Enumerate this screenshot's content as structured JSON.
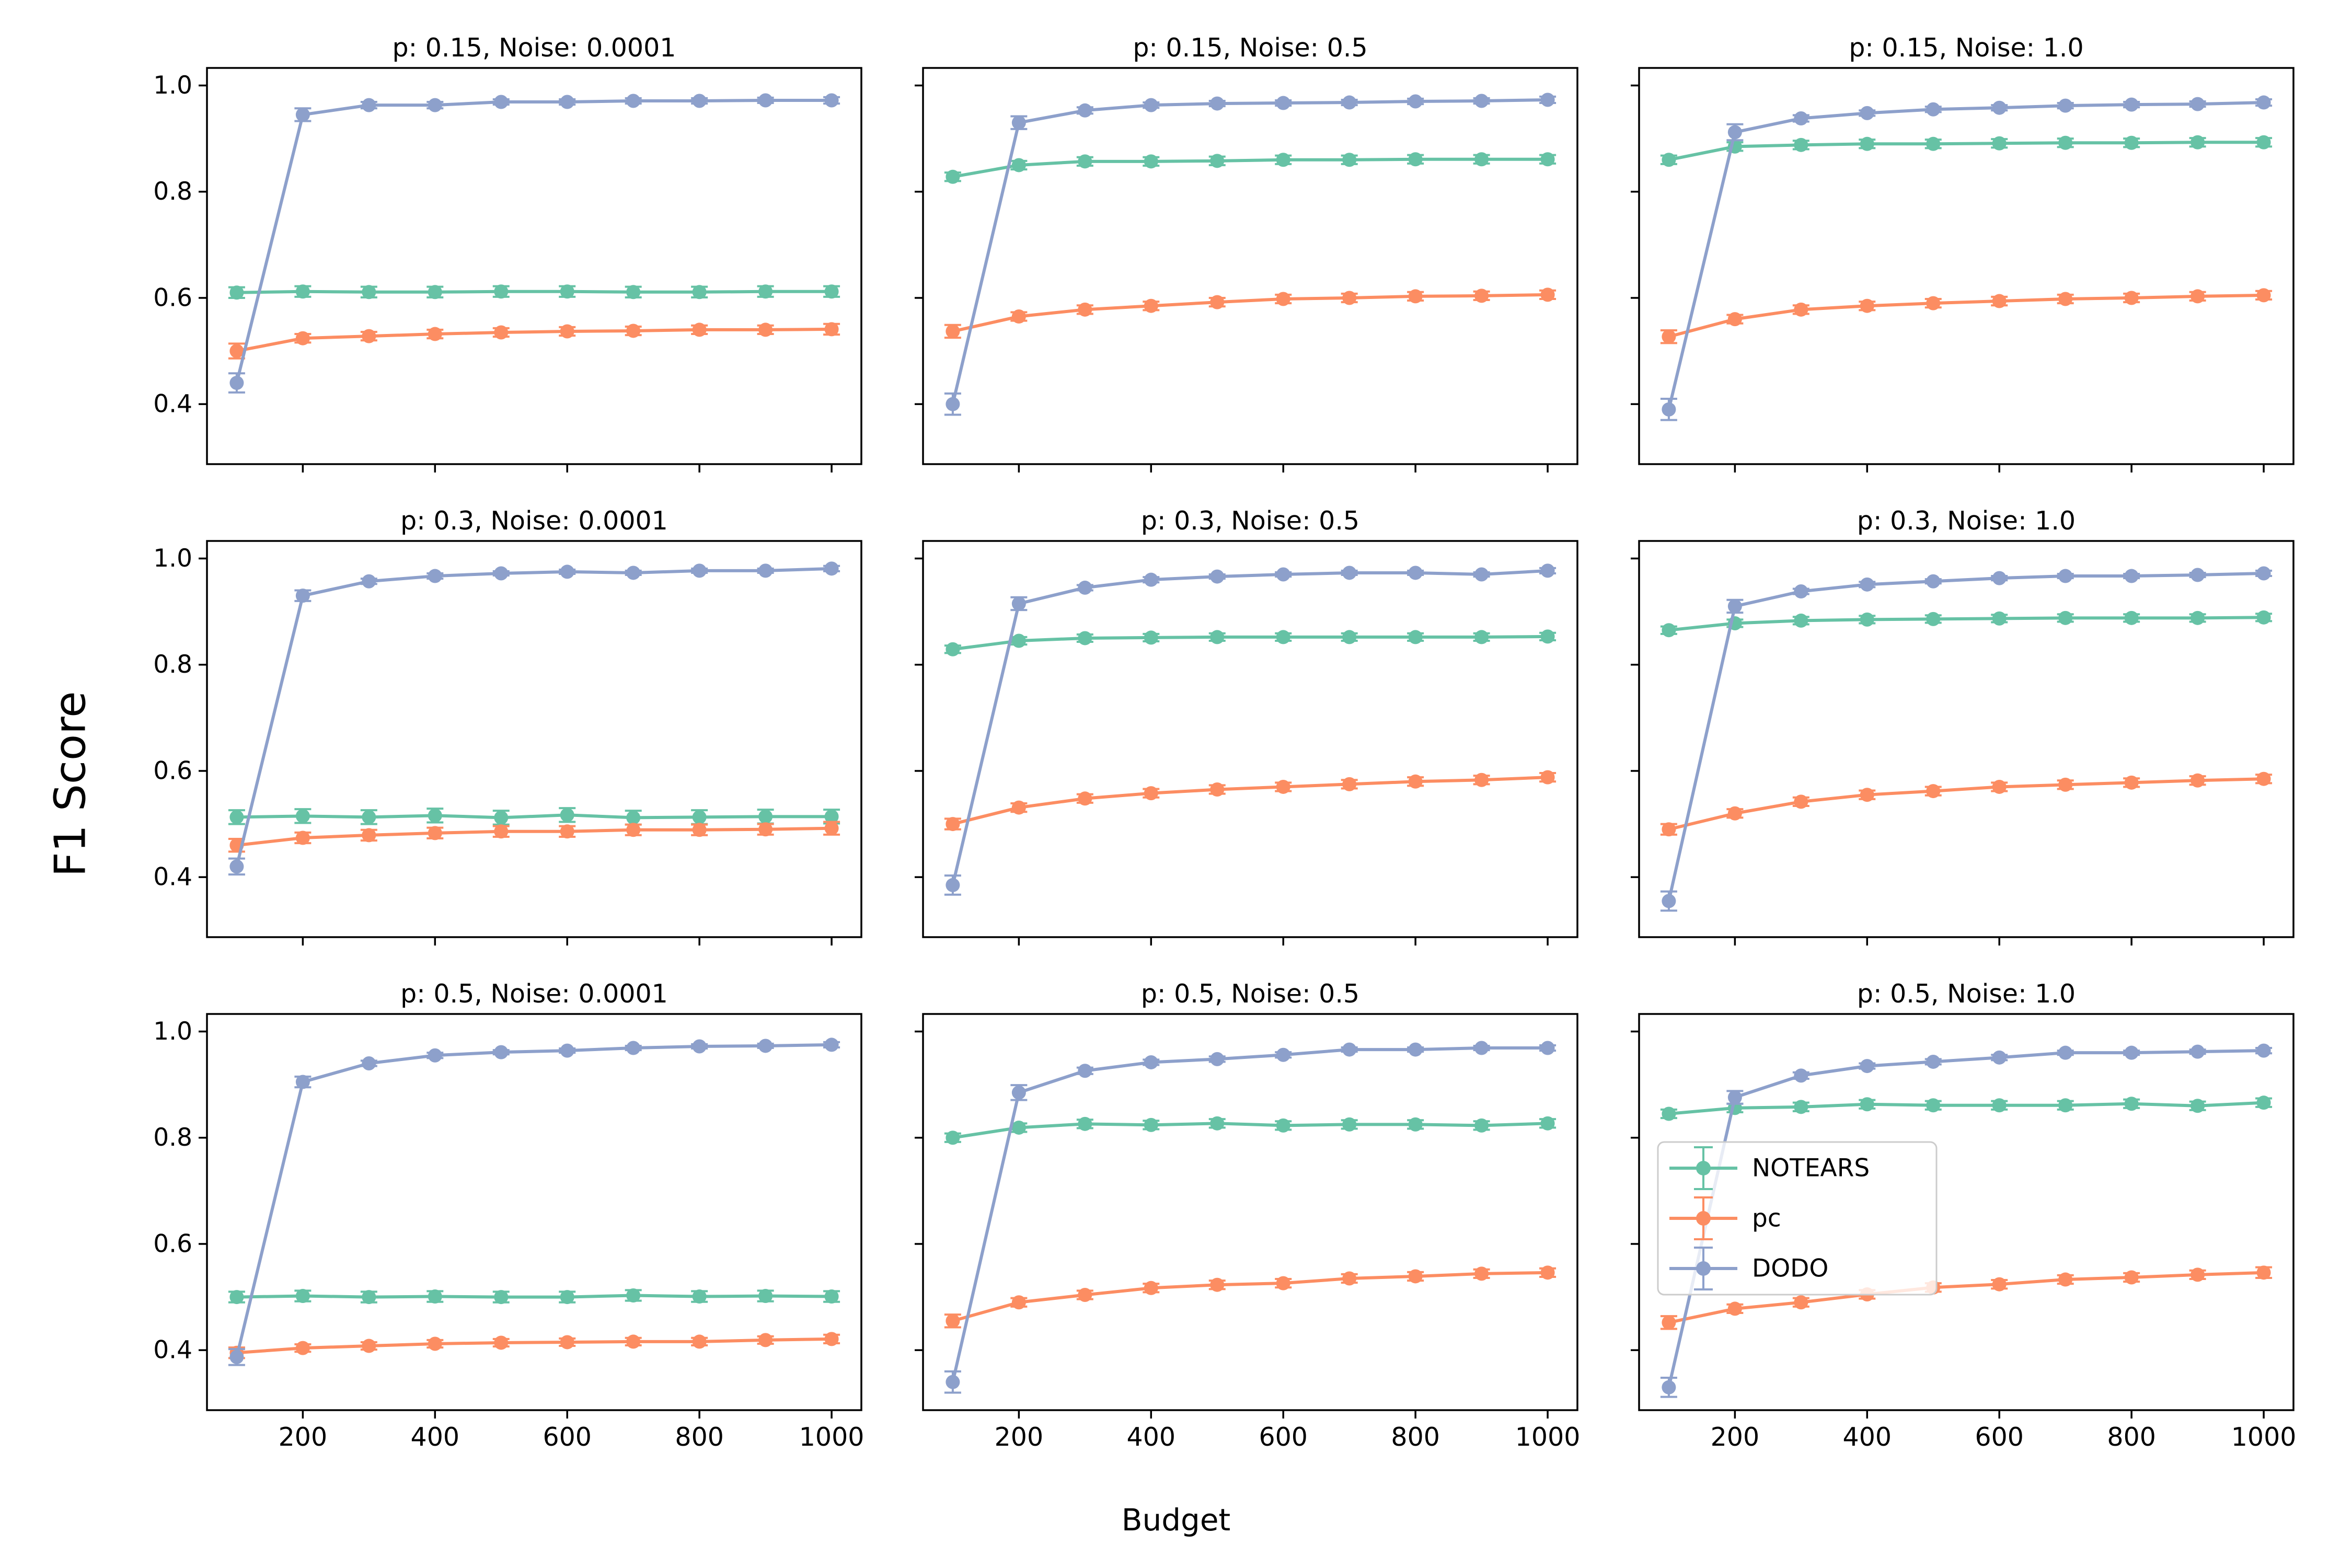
{
  "figure": {
    "background": "#ffffff",
    "supxlabel": "Budget",
    "supylabel": "F1 Score"
  },
  "style": {
    "series_colors": {
      "NOTEARS": "#66c2a5",
      "pc": "#fc8d62",
      "DODO": "#8da0cb"
    },
    "spine_color": "#000000",
    "legend_border_color": "#cccccc",
    "legend_background": "#ffffff"
  },
  "legend": {
    "entries": [
      {
        "label": "NOTEARS",
        "color": "#66c2a5"
      },
      {
        "label": "pc",
        "color": "#fc8d62"
      },
      {
        "label": "DODO",
        "color": "#8da0cb"
      }
    ],
    "location": "center-left-of-bottom-right-subplot"
  },
  "axes_config": {
    "x_ticks": [
      200,
      400,
      600,
      800,
      1000
    ],
    "y_ticks": [
      0.4,
      0.6,
      0.8,
      1.0
    ],
    "x_range": [
      55,
      1045
    ],
    "y_range": [
      0.287,
      1.033
    ],
    "grid": false
  },
  "chart_data": [
    {
      "type": "line",
      "title": "p: 0.15, Noise: 0.0001",
      "p": "0.15",
      "noise": "0.0001",
      "x": [
        100,
        200,
        300,
        400,
        500,
        600,
        700,
        800,
        900,
        1000
      ],
      "series": [
        {
          "name": "NOTEARS",
          "values": [
            0.61,
            0.612,
            0.611,
            0.611,
            0.612,
            0.612,
            0.611,
            0.611,
            0.612,
            0.612
          ],
          "errors": [
            0.01,
            0.01,
            0.01,
            0.01,
            0.01,
            0.01,
            0.01,
            0.01,
            0.01,
            0.01
          ]
        },
        {
          "name": "pc",
          "values": [
            0.5,
            0.524,
            0.528,
            0.532,
            0.535,
            0.537,
            0.538,
            0.54,
            0.54,
            0.541
          ],
          "errors": [
            0.014,
            0.008,
            0.008,
            0.008,
            0.008,
            0.008,
            0.008,
            0.008,
            0.008,
            0.01
          ]
        },
        {
          "name": "DODO",
          "values": [
            0.44,
            0.945,
            0.963,
            0.963,
            0.969,
            0.969,
            0.971,
            0.971,
            0.972,
            0.972
          ],
          "errors": [
            0.018,
            0.012,
            0.006,
            0.006,
            0.005,
            0.005,
            0.005,
            0.005,
            0.005,
            0.006
          ]
        }
      ]
    },
    {
      "type": "line",
      "title": "p: 0.15, Noise: 0.5",
      "p": "0.15",
      "noise": "0.5",
      "x": [
        100,
        200,
        300,
        400,
        500,
        600,
        700,
        800,
        900,
        1000
      ],
      "series": [
        {
          "name": "NOTEARS",
          "values": [
            0.828,
            0.85,
            0.857,
            0.857,
            0.858,
            0.86,
            0.86,
            0.861,
            0.861,
            0.861
          ],
          "errors": [
            0.008,
            0.008,
            0.008,
            0.008,
            0.008,
            0.008,
            0.008,
            0.008,
            0.008,
            0.008
          ]
        },
        {
          "name": "pc",
          "values": [
            0.537,
            0.565,
            0.578,
            0.585,
            0.592,
            0.598,
            0.6,
            0.603,
            0.604,
            0.606
          ],
          "errors": [
            0.012,
            0.008,
            0.008,
            0.008,
            0.008,
            0.008,
            0.008,
            0.008,
            0.008,
            0.008
          ]
        },
        {
          "name": "DODO",
          "values": [
            0.4,
            0.93,
            0.953,
            0.963,
            0.966,
            0.967,
            0.968,
            0.97,
            0.971,
            0.973
          ],
          "errors": [
            0.02,
            0.012,
            0.006,
            0.005,
            0.005,
            0.005,
            0.005,
            0.005,
            0.005,
            0.006
          ]
        }
      ]
    },
    {
      "type": "line",
      "title": "p: 0.15, Noise: 1.0",
      "p": "0.15",
      "noise": "1.0",
      "x": [
        100,
        200,
        300,
        400,
        500,
        600,
        700,
        800,
        900,
        1000
      ],
      "series": [
        {
          "name": "NOTEARS",
          "values": [
            0.86,
            0.885,
            0.888,
            0.89,
            0.89,
            0.891,
            0.892,
            0.892,
            0.893,
            0.893
          ],
          "errors": [
            0.008,
            0.008,
            0.008,
            0.008,
            0.008,
            0.008,
            0.008,
            0.008,
            0.008,
            0.008
          ]
        },
        {
          "name": "pc",
          "values": [
            0.527,
            0.56,
            0.578,
            0.585,
            0.59,
            0.594,
            0.598,
            0.6,
            0.603,
            0.605
          ],
          "errors": [
            0.012,
            0.008,
            0.008,
            0.008,
            0.008,
            0.008,
            0.008,
            0.008,
            0.008,
            0.008
          ]
        },
        {
          "name": "DODO",
          "values": [
            0.39,
            0.912,
            0.938,
            0.948,
            0.955,
            0.958,
            0.962,
            0.964,
            0.965,
            0.968
          ],
          "errors": [
            0.02,
            0.015,
            0.006,
            0.005,
            0.005,
            0.005,
            0.005,
            0.005,
            0.005,
            0.006
          ]
        }
      ]
    },
    {
      "type": "line",
      "title": "p: 0.3, Noise: 0.0001",
      "p": "0.3",
      "noise": "0.0001",
      "x": [
        100,
        200,
        300,
        400,
        500,
        600,
        700,
        800,
        900,
        1000
      ],
      "series": [
        {
          "name": "NOTEARS",
          "values": [
            0.513,
            0.515,
            0.513,
            0.516,
            0.512,
            0.517,
            0.512,
            0.513,
            0.514,
            0.514
          ],
          "errors": [
            0.013,
            0.013,
            0.013,
            0.013,
            0.013,
            0.013,
            0.013,
            0.013,
            0.013,
            0.013
          ]
        },
        {
          "name": "pc",
          "values": [
            0.46,
            0.474,
            0.479,
            0.483,
            0.486,
            0.486,
            0.489,
            0.489,
            0.49,
            0.492
          ],
          "errors": [
            0.012,
            0.01,
            0.01,
            0.01,
            0.01,
            0.01,
            0.01,
            0.01,
            0.01,
            0.012
          ]
        },
        {
          "name": "DODO",
          "values": [
            0.42,
            0.93,
            0.957,
            0.967,
            0.972,
            0.975,
            0.973,
            0.977,
            0.977,
            0.981
          ],
          "errors": [
            0.015,
            0.01,
            0.005,
            0.005,
            0.004,
            0.004,
            0.004,
            0.004,
            0.004,
            0.005
          ]
        }
      ]
    },
    {
      "type": "line",
      "title": "p: 0.3, Noise: 0.5",
      "p": "0.3",
      "noise": "0.5",
      "x": [
        100,
        200,
        300,
        400,
        500,
        600,
        700,
        800,
        900,
        1000
      ],
      "series": [
        {
          "name": "NOTEARS",
          "values": [
            0.829,
            0.845,
            0.85,
            0.851,
            0.852,
            0.852,
            0.852,
            0.852,
            0.852,
            0.853
          ],
          "errors": [
            0.007,
            0.007,
            0.007,
            0.007,
            0.007,
            0.007,
            0.007,
            0.007,
            0.007,
            0.007
          ]
        },
        {
          "name": "pc",
          "values": [
            0.5,
            0.531,
            0.548,
            0.558,
            0.565,
            0.57,
            0.575,
            0.58,
            0.583,
            0.588
          ],
          "errors": [
            0.01,
            0.008,
            0.008,
            0.008,
            0.008,
            0.008,
            0.008,
            0.008,
            0.008,
            0.008
          ]
        },
        {
          "name": "DODO",
          "values": [
            0.385,
            0.915,
            0.945,
            0.96,
            0.966,
            0.97,
            0.973,
            0.973,
            0.97,
            0.977
          ],
          "errors": [
            0.018,
            0.012,
            0.005,
            0.005,
            0.004,
            0.004,
            0.004,
            0.004,
            0.004,
            0.005
          ]
        }
      ]
    },
    {
      "type": "line",
      "title": "p: 0.3, Noise: 1.0",
      "p": "0.3",
      "noise": "1.0",
      "x": [
        100,
        200,
        300,
        400,
        500,
        600,
        700,
        800,
        900,
        1000
      ],
      "series": [
        {
          "name": "NOTEARS",
          "values": [
            0.865,
            0.878,
            0.883,
            0.885,
            0.886,
            0.887,
            0.888,
            0.888,
            0.888,
            0.889
          ],
          "errors": [
            0.007,
            0.007,
            0.007,
            0.007,
            0.007,
            0.007,
            0.007,
            0.007,
            0.007,
            0.007
          ]
        },
        {
          "name": "pc",
          "values": [
            0.49,
            0.52,
            0.542,
            0.555,
            0.562,
            0.57,
            0.574,
            0.578,
            0.582,
            0.585
          ],
          "errors": [
            0.01,
            0.008,
            0.008,
            0.008,
            0.008,
            0.008,
            0.008,
            0.008,
            0.008,
            0.008
          ]
        },
        {
          "name": "DODO",
          "values": [
            0.355,
            0.91,
            0.938,
            0.951,
            0.957,
            0.963,
            0.967,
            0.967,
            0.969,
            0.972
          ],
          "errors": [
            0.018,
            0.012,
            0.005,
            0.005,
            0.004,
            0.004,
            0.004,
            0.004,
            0.004,
            0.005
          ]
        }
      ]
    },
    {
      "type": "line",
      "title": "p: 0.5, Noise: 0.0001",
      "p": "0.5",
      "noise": "0.0001",
      "x": [
        100,
        200,
        300,
        400,
        500,
        600,
        700,
        800,
        900,
        1000
      ],
      "series": [
        {
          "name": "NOTEARS",
          "values": [
            0.5,
            0.502,
            0.5,
            0.501,
            0.5,
            0.5,
            0.503,
            0.501,
            0.502,
            0.501
          ],
          "errors": [
            0.01,
            0.01,
            0.01,
            0.01,
            0.01,
            0.01,
            0.01,
            0.01,
            0.01,
            0.01
          ]
        },
        {
          "name": "pc",
          "values": [
            0.395,
            0.404,
            0.408,
            0.412,
            0.414,
            0.415,
            0.416,
            0.416,
            0.419,
            0.421
          ],
          "errors": [
            0.01,
            0.007,
            0.007,
            0.007,
            0.007,
            0.007,
            0.007,
            0.007,
            0.007,
            0.008
          ]
        },
        {
          "name": "DODO",
          "values": [
            0.387,
            0.905,
            0.94,
            0.955,
            0.961,
            0.964,
            0.969,
            0.972,
            0.973,
            0.975
          ],
          "errors": [
            0.015,
            0.01,
            0.005,
            0.005,
            0.004,
            0.004,
            0.004,
            0.004,
            0.004,
            0.005
          ]
        }
      ]
    },
    {
      "type": "line",
      "title": "p: 0.5, Noise: 0.5",
      "p": "0.5",
      "noise": "0.5",
      "x": [
        100,
        200,
        300,
        400,
        500,
        600,
        700,
        800,
        900,
        1000
      ],
      "series": [
        {
          "name": "NOTEARS",
          "values": [
            0.8,
            0.819,
            0.826,
            0.824,
            0.827,
            0.823,
            0.825,
            0.825,
            0.823,
            0.827
          ],
          "errors": [
            0.008,
            0.008,
            0.008,
            0.008,
            0.008,
            0.008,
            0.008,
            0.008,
            0.008,
            0.008
          ]
        },
        {
          "name": "pc",
          "values": [
            0.455,
            0.49,
            0.504,
            0.517,
            0.523,
            0.526,
            0.535,
            0.539,
            0.544,
            0.546
          ],
          "errors": [
            0.012,
            0.008,
            0.008,
            0.008,
            0.008,
            0.008,
            0.008,
            0.008,
            0.008,
            0.008
          ]
        },
        {
          "name": "DODO",
          "values": [
            0.34,
            0.885,
            0.926,
            0.942,
            0.948,
            0.956,
            0.966,
            0.966,
            0.969,
            0.969
          ],
          "errors": [
            0.02,
            0.014,
            0.006,
            0.005,
            0.005,
            0.005,
            0.004,
            0.004,
            0.004,
            0.005
          ]
        }
      ]
    },
    {
      "type": "line",
      "title": "p: 0.5, Noise: 1.0",
      "p": "0.5",
      "noise": "1.0",
      "x": [
        100,
        200,
        300,
        400,
        500,
        600,
        700,
        800,
        900,
        1000
      ],
      "series": [
        {
          "name": "NOTEARS",
          "values": [
            0.845,
            0.856,
            0.858,
            0.863,
            0.861,
            0.861,
            0.861,
            0.864,
            0.86,
            0.866
          ],
          "errors": [
            0.008,
            0.008,
            0.008,
            0.008,
            0.008,
            0.008,
            0.008,
            0.008,
            0.008,
            0.008
          ]
        },
        {
          "name": "pc",
          "values": [
            0.452,
            0.478,
            0.49,
            0.505,
            0.518,
            0.524,
            0.533,
            0.537,
            0.542,
            0.546
          ],
          "errors": [
            0.012,
            0.008,
            0.008,
            0.008,
            0.008,
            0.008,
            0.008,
            0.008,
            0.008,
            0.01
          ]
        },
        {
          "name": "DODO",
          "values": [
            0.33,
            0.876,
            0.917,
            0.935,
            0.943,
            0.951,
            0.96,
            0.96,
            0.962,
            0.964
          ],
          "errors": [
            0.018,
            0.012,
            0.006,
            0.005,
            0.005,
            0.005,
            0.004,
            0.004,
            0.004,
            0.005
          ]
        }
      ]
    }
  ]
}
